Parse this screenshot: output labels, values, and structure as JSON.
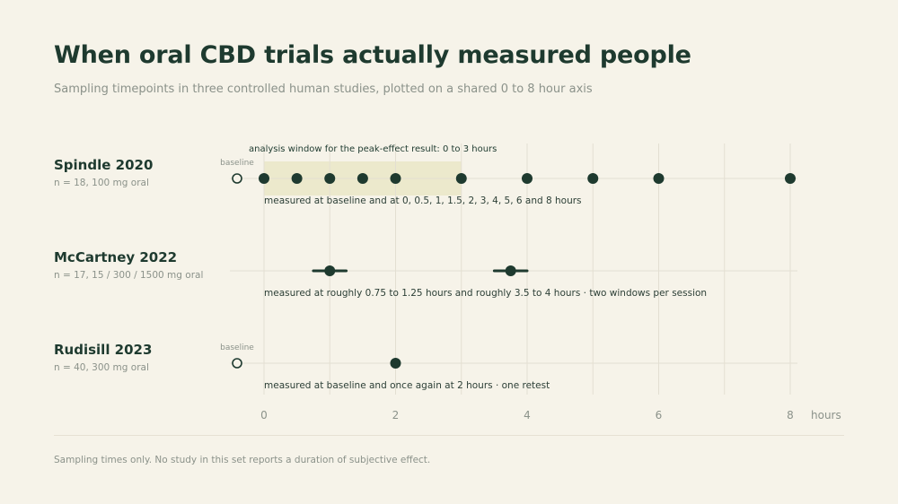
{
  "title": "When oral CBD trials actually measured people",
  "subtitle": "Sampling timepoints in three controlled human studies, plotted on a shared 0 to 8 hour axis",
  "footnote": "Sampling times only. No study in this set reports a duration of subjective effect.",
  "colors": {
    "background": "#f6f3e9",
    "dot": "#1e3a2f",
    "window_band": "#ece9cc",
    "grid": "#e3dfd2"
  },
  "chart_data": {
    "type": "scatter",
    "xlim": [
      0,
      8
    ],
    "xlabel": "hours",
    "x_ticks": [
      0,
      2,
      4,
      6,
      8
    ],
    "grid": true,
    "studies": [
      {
        "name": "Spindle 2020",
        "meta": "n = 18, 100 mg oral",
        "baseline": true,
        "baseline_label": "baseline",
        "points": [
          0,
          0.5,
          1,
          1.5,
          2,
          3,
          4,
          5,
          6,
          8
        ],
        "ranges": [],
        "window": {
          "from": 0,
          "to": 3,
          "label": "analysis window for the peak-effect result: 0 to 3 hours"
        },
        "note": "measured at baseline and at 0, 0.5, 1, 1.5, 2, 3, 4, 5, 6 and 8 hours"
      },
      {
        "name": "McCartney 2022",
        "meta": "n = 17, 15 / 300 / 1500 mg oral",
        "baseline": false,
        "baseline_label": "",
        "points": [],
        "ranges": [
          {
            "from": 0.75,
            "to": 1.25,
            "center": 1.0
          },
          {
            "from": 3.5,
            "to": 4.0,
            "center": 3.75
          }
        ],
        "window": null,
        "note": "measured at roughly 0.75 to 1.25 hours and roughly 3.5 to 4 hours · two windows per session"
      },
      {
        "name": "Rudisill 2023",
        "meta": "n = 40, 300 mg oral",
        "baseline": true,
        "baseline_label": "baseline",
        "points": [
          2
        ],
        "ranges": [],
        "window": null,
        "note": "measured at baseline and once again at 2 hours · one retest"
      }
    ]
  }
}
